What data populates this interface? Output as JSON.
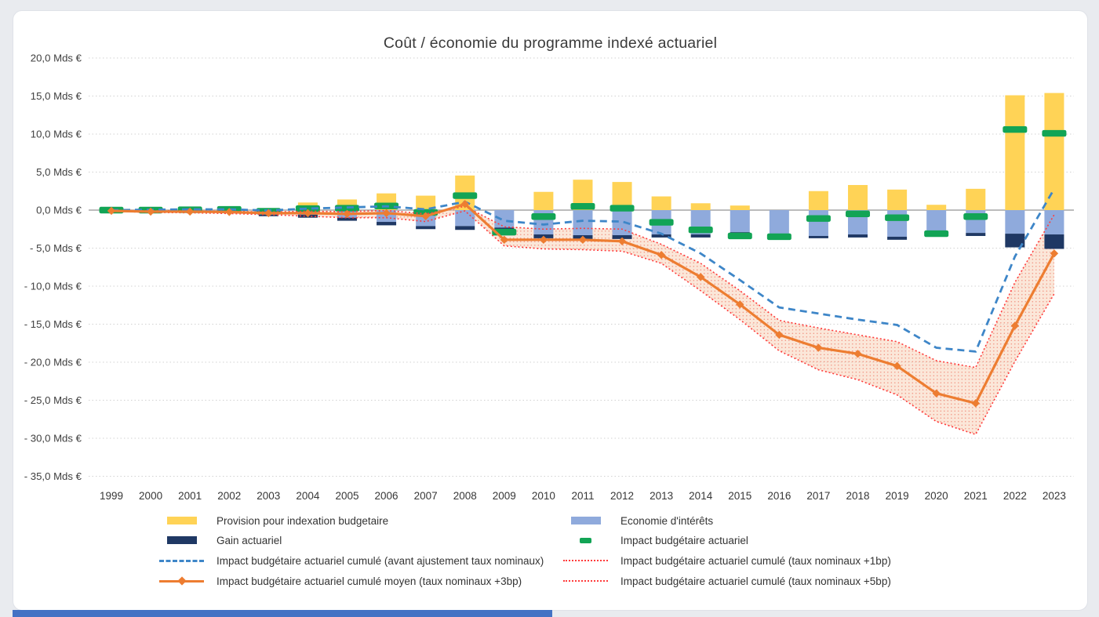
{
  "window": {
    "background": "#e9ebef",
    "card_background": "#ffffff",
    "bottom_bar_color": "#4472c4"
  },
  "chart_data": {
    "type": "combo: stacked bars + markers + lines + uncertainty band",
    "title": "Coût / économie du programme indexé actuariel",
    "unit": "Mds €",
    "categories": [
      "1999",
      "2000",
      "2001",
      "2002",
      "2003",
      "2004",
      "2005",
      "2006",
      "2007",
      "2008",
      "2009",
      "2010",
      "2011",
      "2012",
      "2013",
      "2014",
      "2015",
      "2016",
      "2017",
      "2018",
      "2019",
      "2020",
      "2021",
      "2022",
      "2023"
    ],
    "y_axis": {
      "min": -35,
      "max": 20,
      "step": 5,
      "tick_labels": [
        "20,0 Mds €",
        "15,0 Mds €",
        "10,0 Mds €",
        "5,0 Mds €",
        "0,0 Mds €",
        "- 5,0 Mds €",
        "- 10,0 Mds €",
        "- 15,0 Mds €",
        "- 20,0 Mds €",
        "- 25,0 Mds €",
        "- 30,0 Mds €",
        "- 35,0 Mds €"
      ],
      "grid": "dotted",
      "zero_line": "solid"
    },
    "bar_series": [
      {
        "id": "provision",
        "name": "Provision pour indexation budgetaire",
        "color": "#ffd356",
        "note": "bar from 0 up to value",
        "values": [
          0,
          0,
          0,
          0.1,
          0.15,
          1.0,
          1.4,
          2.2,
          1.9,
          4.55,
          0,
          2.4,
          4.0,
          3.7,
          1.8,
          0.9,
          0.6,
          0,
          2.5,
          3.3,
          2.7,
          0.7,
          2.8,
          15.1,
          15.4
        ]
      },
      {
        "id": "economie",
        "name": "Economie d'intérêts",
        "color": "#8faadc",
        "note": "bar from 0 down to value",
        "values": [
          -0.05,
          -0.1,
          -0.1,
          -0.3,
          -0.6,
          -0.6,
          -1.0,
          -1.55,
          -2.1,
          -2.1,
          -2.3,
          -3.2,
          -3.3,
          -3.3,
          -3.2,
          -3.2,
          -2.9,
          -3.2,
          -3.4,
          -3.2,
          -3.5,
          -2.9,
          -3.0,
          -3.1,
          -3.2
        ]
      },
      {
        "id": "gain",
        "name": "Gain actuariel",
        "color": "#1f3864",
        "note": "bar from economie value down to this value",
        "values": [
          -0.1,
          -0.15,
          -0.15,
          -0.4,
          -0.8,
          -1.0,
          -1.4,
          -2.0,
          -2.5,
          -2.6,
          -2.55,
          -3.7,
          -3.8,
          -3.8,
          -3.6,
          -3.6,
          -3.1,
          -3.4,
          -3.7,
          -3.6,
          -3.9,
          -3.3,
          -3.4,
          -4.9,
          -5.1
        ]
      }
    ],
    "marker_series": {
      "id": "impact",
      "name": "Impact budgétaire actuariel",
      "color": "#12a455",
      "values": [
        0,
        0,
        0.05,
        0.1,
        -0.15,
        0.2,
        0.25,
        0.55,
        -0.3,
        1.9,
        -2.9,
        -0.85,
        0.5,
        0.25,
        -1.6,
        -2.6,
        -3.4,
        -3.5,
        -1.1,
        -0.5,
        -1.0,
        -3.1,
        -0.85,
        10.6,
        10.1
      ]
    },
    "line_series": [
      {
        "id": "cumule_avant",
        "name": "Impact budgétaire actuariel cumulé (avant ajustement taux nominaux)",
        "color": "#3e86c8",
        "style": "dashed",
        "values": [
          0,
          0.05,
          0.1,
          0.1,
          -0.05,
          0.2,
          0.35,
          0.5,
          0.1,
          1.1,
          -1.4,
          -1.9,
          -1.4,
          -1.5,
          -3.1,
          -5.7,
          -9.2,
          -12.8,
          -13.6,
          -14.4,
          -15.1,
          -18.1,
          -18.6,
          -6.1,
          2.8
        ]
      },
      {
        "id": "cumule_1bp",
        "name": "Impact budgétaire actuariel cumulé (taux nominaux +1bp)",
        "color": "#ff3b3b",
        "style": "dotted",
        "values": [
          -0.05,
          -0.1,
          -0.1,
          -0.15,
          -0.25,
          -0.15,
          -0.2,
          -0.05,
          -0.5,
          0.5,
          -2.2,
          -2.5,
          -2.4,
          -2.5,
          -4.5,
          -7.0,
          -10.6,
          -14.5,
          -15.5,
          -16.4,
          -17.3,
          -19.8,
          -20.7,
          -9.5,
          -0.6
        ]
      },
      {
        "id": "cumule_moyen",
        "name": "Impact budgétaire actuariel cumulé moyen (taux nominaux +3bp)",
        "color": "#ed7d31",
        "style": "solid-diamond",
        "values": [
          -0.1,
          -0.2,
          -0.2,
          -0.25,
          -0.4,
          -0.4,
          -0.5,
          -0.4,
          -0.8,
          0.8,
          -3.9,
          -3.9,
          -3.9,
          -4.1,
          -5.9,
          -8.8,
          -12.4,
          -16.4,
          -18.1,
          -18.9,
          -20.5,
          -24.1,
          -25.4,
          -15.2,
          -5.7
        ]
      },
      {
        "id": "cumule_5bp",
        "name": "Impact budgétaire actuariel cumulé (taux nominaux +5bp)",
        "color": "#ff3b3b",
        "style": "dotted",
        "values": [
          -0.15,
          -0.3,
          -0.35,
          -0.45,
          -0.6,
          -0.8,
          -1.0,
          -1.0,
          -1.5,
          -0.1,
          -4.7,
          -5.1,
          -5.2,
          -5.4,
          -7.0,
          -10.6,
          -14.4,
          -18.5,
          -21.0,
          -22.3,
          -24.3,
          -27.8,
          -29.5,
          -19.9,
          -11.0
        ]
      }
    ],
    "band": {
      "between": [
        "cumule_1bp",
        "cumule_5bp"
      ],
      "fill": "#f7caac",
      "dot_color": "#e63c28",
      "legend_hidden": true
    }
  }
}
